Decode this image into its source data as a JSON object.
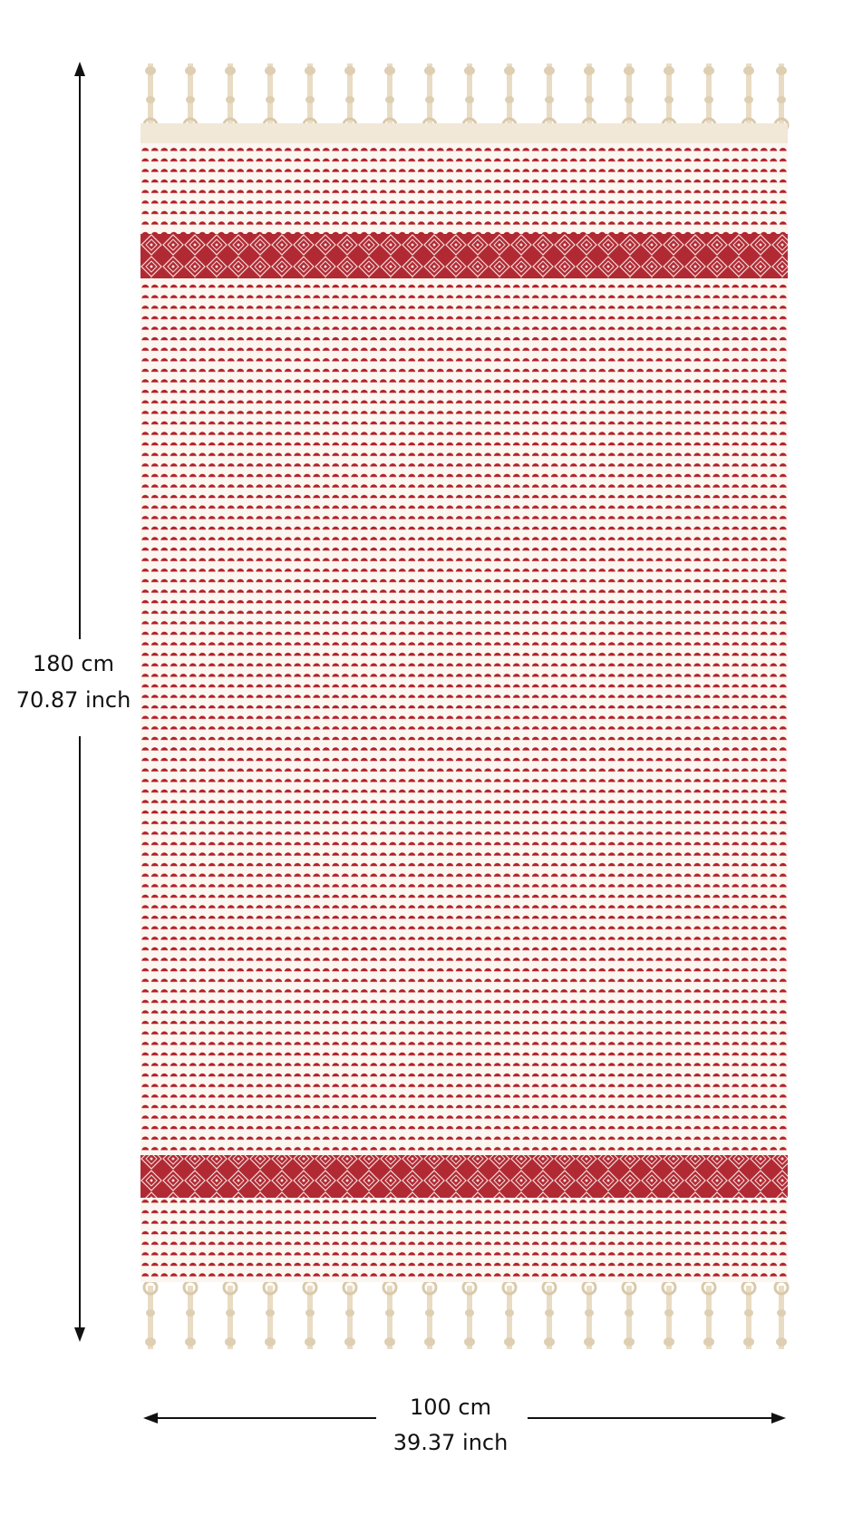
{
  "height": {
    "cm": "180 cm",
    "inch": "70.87 inch"
  },
  "width": {
    "cm": "100 cm",
    "inch": "39.37 inch"
  }
}
